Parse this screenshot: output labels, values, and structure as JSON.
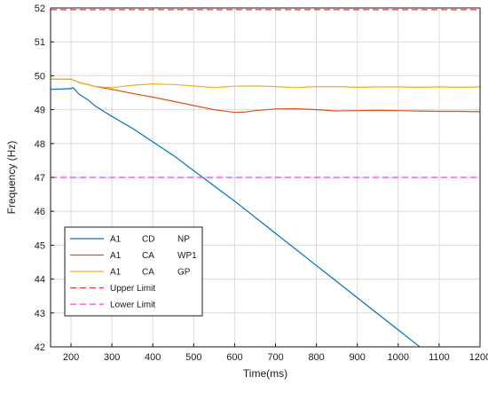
{
  "chart_data": {
    "type": "line",
    "xlabel": "Time(ms)",
    "ylabel": "Frequency (Hz)",
    "xlim": [
      150,
      1200
    ],
    "ylim": [
      42,
      52
    ],
    "xticks": [
      200,
      300,
      400,
      500,
      600,
      700,
      800,
      900,
      1000,
      1100,
      1200
    ],
    "yticks": [
      42,
      43,
      44,
      45,
      46,
      47,
      48,
      49,
      50,
      51,
      52
    ],
    "grid": true,
    "legend_position": "bottom-left",
    "series": [
      {
        "legend_parts": [
          "A1",
          "CD",
          "NP"
        ],
        "color": "#0072bd",
        "style": "solid",
        "x": [
          150,
          200,
          205,
          220,
          240,
          260,
          280,
          300,
          350,
          400,
          450,
          500,
          550,
          600,
          700,
          800,
          900,
          1000,
          1100,
          1140
        ],
        "y": [
          49.6,
          49.62,
          49.65,
          49.45,
          49.3,
          49.1,
          48.95,
          48.8,
          48.45,
          48.05,
          47.65,
          47.2,
          46.75,
          46.3,
          45.35,
          44.4,
          43.45,
          42.5,
          41.55,
          41.95
        ]
      },
      {
        "legend_parts": [
          "A1",
          "CA",
          "WP1"
        ],
        "color": "#d95319",
        "style": "solid",
        "x": [
          150,
          200,
          220,
          260,
          300,
          350,
          400,
          450,
          500,
          550,
          600,
          625,
          650,
          700,
          750,
          800,
          850,
          900,
          950,
          1000,
          1050,
          1100,
          1150,
          1200
        ],
        "y": [
          49.9,
          49.9,
          49.8,
          49.68,
          49.6,
          49.48,
          49.37,
          49.25,
          49.12,
          49.0,
          48.92,
          48.93,
          48.97,
          49.02,
          49.03,
          49.0,
          48.96,
          48.97,
          48.98,
          48.97,
          48.96,
          48.95,
          48.95,
          48.94
        ]
      },
      {
        "legend_parts": [
          "A1",
          "CA",
          "GP"
        ],
        "color": "#edb120",
        "style": "solid",
        "x": [
          150,
          200,
          220,
          260,
          300,
          350,
          400,
          450,
          500,
          550,
          600,
          650,
          700,
          750,
          800,
          850,
          900,
          950,
          1000,
          1050,
          1100,
          1150,
          1200
        ],
        "y": [
          49.9,
          49.9,
          49.8,
          49.68,
          49.65,
          49.72,
          49.76,
          49.74,
          49.7,
          49.65,
          49.69,
          49.7,
          49.68,
          49.65,
          49.68,
          49.68,
          49.66,
          49.67,
          49.67,
          49.66,
          49.67,
          49.66,
          49.67
        ]
      },
      {
        "legend_parts": [
          "Upper Limit"
        ],
        "color": "#e03a3a",
        "style": "dashed",
        "x": [
          150,
          1200
        ],
        "y": [
          51.95,
          51.95
        ]
      },
      {
        "legend_parts": [
          "Lower Limit"
        ],
        "color": "#ff33ff",
        "style": "dashed",
        "x": [
          150,
          1200
        ],
        "y": [
          47.0,
          47.0
        ]
      }
    ]
  }
}
